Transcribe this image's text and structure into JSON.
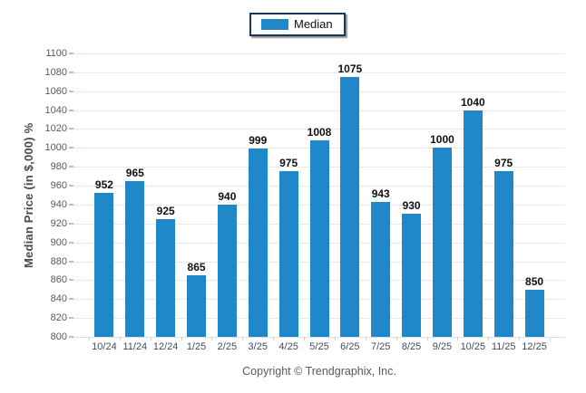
{
  "legend": {
    "items": [
      {
        "label": "Median",
        "color": "#1E88C9"
      }
    ]
  },
  "footer": {
    "copyright": "Copyright © Trendgraphix, Inc."
  },
  "chart_data": {
    "type": "bar",
    "title": "",
    "categories": [
      "10/24",
      "11/24",
      "12/24",
      "1/25",
      "2/25",
      "3/25",
      "4/25",
      "5/25",
      "6/25",
      "7/25",
      "8/25",
      "9/25",
      "10/25",
      "11/25",
      "12/25"
    ],
    "series": [
      {
        "name": "Median",
        "color": "#1E88C9",
        "values": [
          952,
          965,
          925,
          865,
          940,
          999,
          975,
          1008,
          1075,
          943,
          930,
          1000,
          1040,
          975,
          850
        ]
      }
    ],
    "xlabel": "",
    "ylabel": "Median Price (in $,000) %",
    "ylim": [
      800,
      1100
    ],
    "ytick_step": 20,
    "grid": true,
    "value_labels": true,
    "legend_position": "top-center"
  },
  "colors": {
    "bar": "#1E88C9",
    "grid_line": "#E9E9E9",
    "axis_line": "#D6DDE6",
    "y_tick": "#9FC5EF",
    "x_tick": "#C9D5E2",
    "y_label": "#595959",
    "x_label": "#3F4D63",
    "value_label": "#111111",
    "legend_border": "#17375E",
    "y_title": "#4A4A4A",
    "copyright": "#595959"
  }
}
